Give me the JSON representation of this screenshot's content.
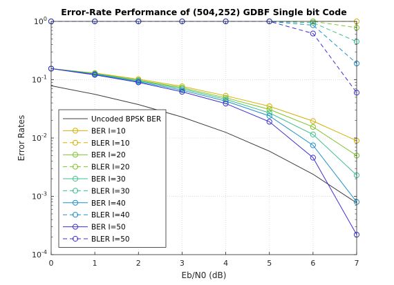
{
  "chart_data": {
    "type": "line",
    "title": "Error-Rate Performance of (504,252) GDBF Single bit Code",
    "xlabel": "Eb/N0 (dB)",
    "ylabel": "Error Rates",
    "x": [
      0,
      1,
      2,
      3,
      4,
      5,
      6,
      7
    ],
    "xlim": [
      0,
      7
    ],
    "ylim": [
      0.0001,
      1
    ],
    "yscale": "log",
    "x_ticks": [
      "0",
      "1",
      "2",
      "3",
      "4",
      "5",
      "6",
      "7"
    ],
    "y_ticks": [
      {
        "base": "10",
        "exp": "-4",
        "value": 0.0001
      },
      {
        "base": "10",
        "exp": "-3",
        "value": 0.001
      },
      {
        "base": "10",
        "exp": "-2",
        "value": 0.01
      },
      {
        "base": "10",
        "exp": "-1",
        "value": 0.1
      },
      {
        "base": "10",
        "exp": "0",
        "value": 1
      }
    ],
    "grid": true,
    "legend_position": "lower-left",
    "series": [
      {
        "name": "Uncoded BPSK BER",
        "color": "#3c3c3c",
        "dash": false,
        "marker": "none",
        "values": [
          0.0786,
          0.0563,
          0.0375,
          0.0229,
          0.0125,
          0.00595,
          0.00239,
          0.00077
        ]
      },
      {
        "name": "BER I=10",
        "color": "#d4b000",
        "dash": false,
        "marker": "circle",
        "values": [
          0.155,
          0.13,
          0.102,
          0.077,
          0.053,
          0.035,
          0.0195,
          0.009
        ]
      },
      {
        "name": "BLER I=10",
        "color": "#d4b000",
        "dash": true,
        "marker": "circle",
        "values": [
          1,
          1,
          1,
          1,
          1,
          1,
          1,
          1
        ]
      },
      {
        "name": "BER I=20",
        "color": "#7cc428",
        "dash": false,
        "marker": "circle",
        "values": [
          0.155,
          0.128,
          0.098,
          0.073,
          0.049,
          0.031,
          0.0155,
          0.005
        ]
      },
      {
        "name": "BLER I=20",
        "color": "#7cc428",
        "dash": true,
        "marker": "circle",
        "values": [
          1,
          1,
          1,
          1,
          1,
          1,
          1,
          0.78
        ]
      },
      {
        "name": "BER I=30",
        "color": "#3cc08c",
        "dash": false,
        "marker": "circle",
        "values": [
          0.155,
          0.126,
          0.096,
          0.07,
          0.046,
          0.027,
          0.0115,
          0.0023
        ]
      },
      {
        "name": "BLER I=30",
        "color": "#3cc08c",
        "dash": true,
        "marker": "circle",
        "values": [
          1,
          1,
          1,
          1,
          1,
          1,
          0.95,
          0.45
        ]
      },
      {
        "name": "BER I=40",
        "color": "#1e90c8",
        "dash": false,
        "marker": "circle",
        "values": [
          0.155,
          0.124,
          0.093,
          0.066,
          0.043,
          0.024,
          0.0075,
          0.0008
        ]
      },
      {
        "name": "BLER I=40",
        "color": "#1e90c8",
        "dash": true,
        "marker": "circle",
        "values": [
          1,
          1,
          1,
          1,
          1,
          1,
          0.86,
          0.19
        ]
      },
      {
        "name": "BER I=50",
        "color": "#3c2ed2",
        "dash": false,
        "marker": "circle",
        "values": [
          0.155,
          0.121,
          0.09,
          0.062,
          0.039,
          0.019,
          0.0046,
          0.00022
        ]
      },
      {
        "name": "BLER I=50",
        "color": "#3c2ed2",
        "dash": true,
        "marker": "circle",
        "values": [
          1,
          1,
          1,
          1,
          1,
          1,
          0.62,
          0.06
        ]
      }
    ]
  }
}
